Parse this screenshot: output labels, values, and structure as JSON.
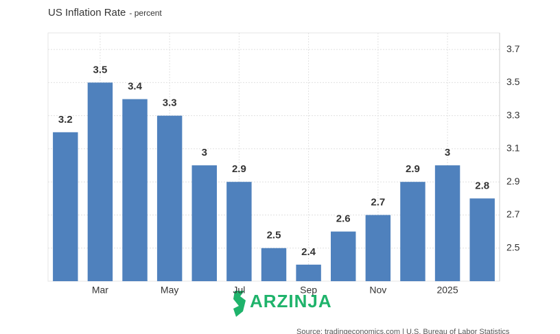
{
  "chart_data": {
    "type": "bar",
    "title": "US Inflation Rate",
    "subtitle": "- percent",
    "categories": [
      null,
      "Mar",
      null,
      "May",
      null,
      "Jul",
      null,
      "Sep",
      null,
      "Nov",
      null,
      "2025",
      null
    ],
    "values": [
      3.2,
      3.5,
      3.4,
      3.3,
      3,
      2.9,
      2.5,
      2.4,
      2.6,
      2.7,
      2.9,
      3,
      2.8
    ],
    "color": "#4f81bd",
    "ylim": [
      2.3,
      3.8
    ],
    "yticks": [
      2.5,
      2.7,
      2.9,
      3.1,
      3.3,
      3.5,
      3.7
    ],
    "grid": true,
    "source": "Source: tradingeconomics.com | U.S. Bureau of Labor Statistics",
    "watermark": "ARZINJA"
  }
}
